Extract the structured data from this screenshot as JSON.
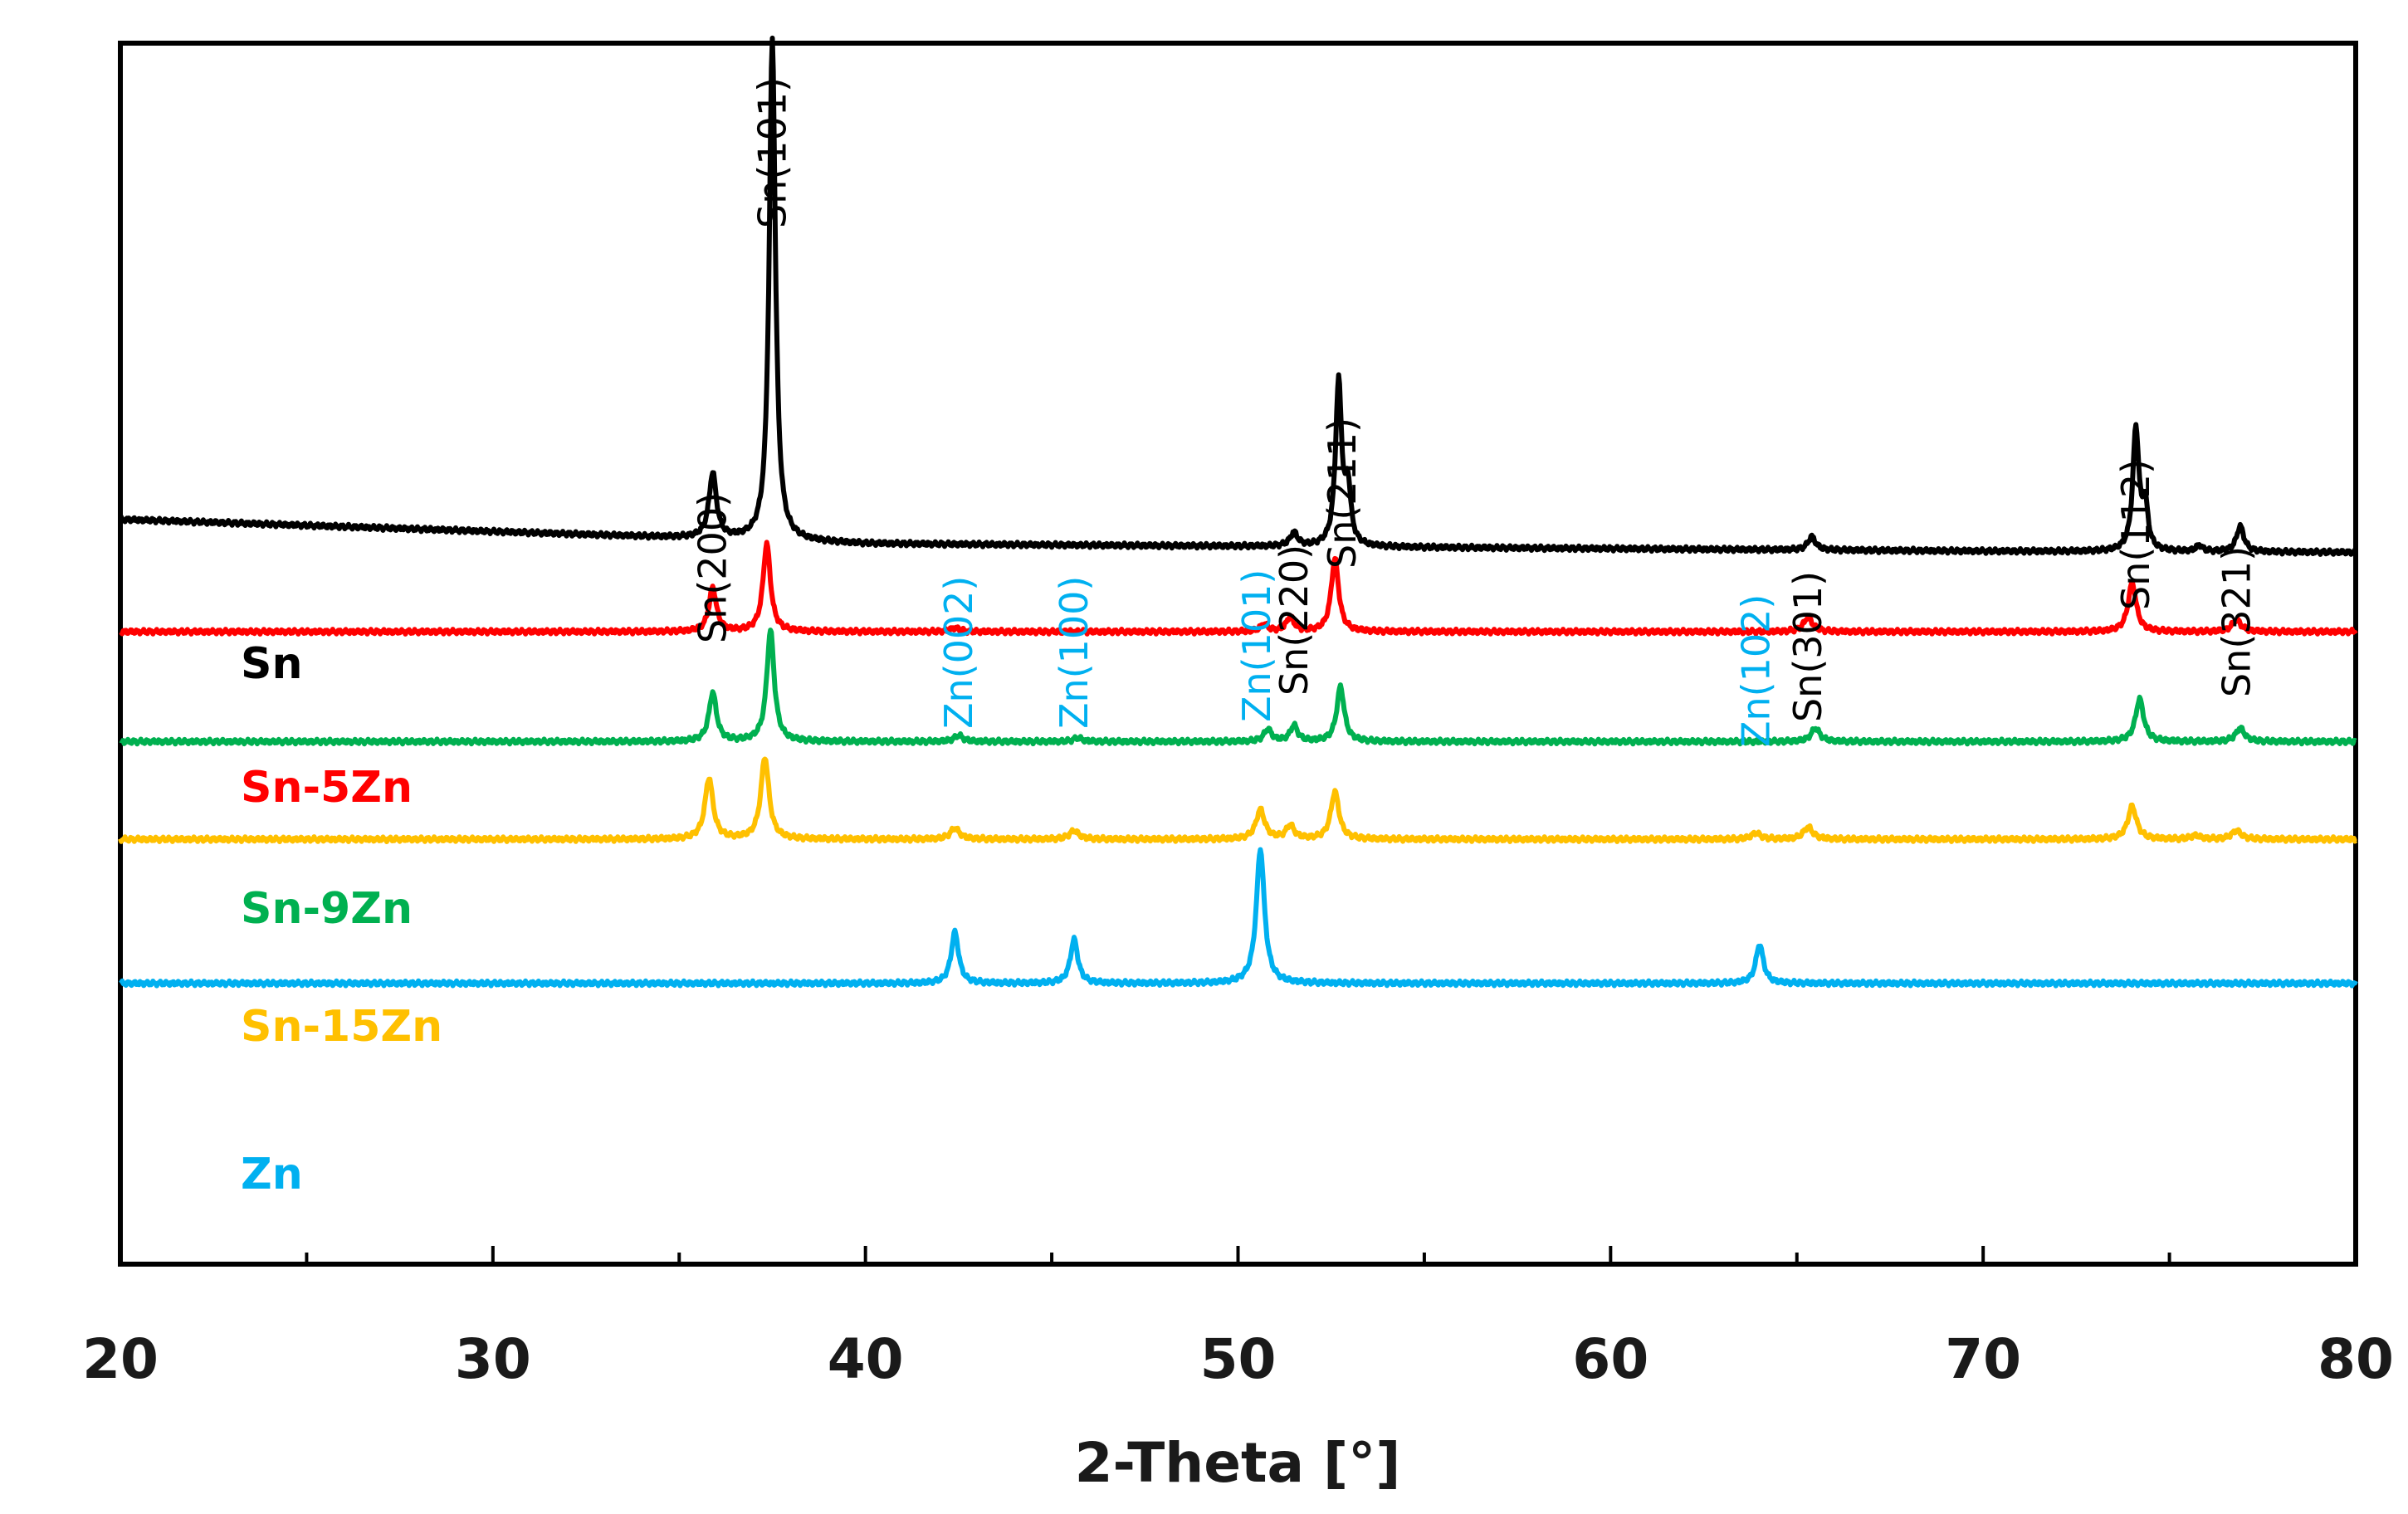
{
  "chart_data": {
    "type": "line",
    "title": "",
    "xlabel": "2-Theta [°]",
    "ylabel": "",
    "xlim": [
      20,
      80
    ],
    "xticks": [
      20,
      30,
      40,
      50,
      60,
      70,
      80
    ],
    "xtick_labels": [
      "20",
      "30",
      "40",
      "50",
      "60",
      "70",
      "80"
    ],
    "ylim": [
      0,
      100
    ],
    "grid": false,
    "series": [
      {
        "name": "Sn",
        "color": "#000000",
        "baseline": [
          [
            20,
            61
          ],
          [
            30,
            60
          ],
          [
            40,
            59
          ],
          [
            50,
            58.8
          ],
          [
            60,
            58.6
          ],
          [
            70,
            58.4
          ],
          [
            80,
            58.3
          ]
        ],
        "peaks": [
          [
            35.9,
            5.3,
            0.12
          ],
          [
            37.5,
            41,
            0.1
          ],
          [
            51.5,
            1.1,
            0.12
          ],
          [
            52.7,
            13.4,
            0.1
          ],
          [
            52.95,
            4.5,
            0.09
          ],
          [
            65.4,
            1.1,
            0.12
          ],
          [
            74.1,
            10,
            0.1
          ],
          [
            74.35,
            3.5,
            0.09
          ],
          [
            75.8,
            0.5,
            0.1
          ],
          [
            76.9,
            2.1,
            0.12
          ]
        ]
      },
      {
        "name": "Sn-5Zn",
        "color": "#ff0000",
        "baseline": [
          [
            20,
            51.8
          ],
          [
            80,
            51.8
          ]
        ],
        "peaks": [
          [
            35.9,
            3.6,
            0.12
          ],
          [
            37.35,
            7.2,
            0.12
          ],
          [
            42.4,
            0.3,
            0.15
          ],
          [
            50.7,
            0.6,
            0.12
          ],
          [
            51.4,
            1.2,
            0.12
          ],
          [
            52.6,
            6,
            0.12
          ],
          [
            65.3,
            1.2,
            0.14
          ],
          [
            74.0,
            4,
            0.13
          ],
          [
            76.8,
            1,
            0.14
          ]
        ]
      },
      {
        "name": "Sn-9Zn",
        "color": "#00b050",
        "baseline": [
          [
            20,
            42.8
          ],
          [
            80,
            42.8
          ]
        ],
        "peaks": [
          [
            35.9,
            4,
            0.12
          ],
          [
            37.45,
            9.1,
            0.12
          ],
          [
            42.5,
            0.5,
            0.14
          ],
          [
            45.7,
            0.3,
            0.14
          ],
          [
            50.8,
            1,
            0.12
          ],
          [
            51.5,
            1.3,
            0.12
          ],
          [
            52.75,
            4.5,
            0.12
          ],
          [
            65.5,
            1.1,
            0.14
          ],
          [
            74.2,
            3.5,
            0.13
          ],
          [
            76.9,
            1.1,
            0.14
          ]
        ]
      },
      {
        "name": "Sn-15Zn",
        "color": "#ffc000",
        "baseline": [
          [
            20,
            34.8
          ],
          [
            80,
            34.8
          ]
        ],
        "peaks": [
          [
            35.8,
            5,
            0.13
          ],
          [
            37.3,
            6.7,
            0.13
          ],
          [
            42.4,
            0.9,
            0.15
          ],
          [
            45.6,
            0.7,
            0.15
          ],
          [
            50.6,
            2.4,
            0.14
          ],
          [
            51.4,
            1.1,
            0.13
          ],
          [
            52.6,
            3.9,
            0.13
          ],
          [
            63.9,
            0.5,
            0.15
          ],
          [
            65.3,
            1,
            0.15
          ],
          [
            74.0,
            2.7,
            0.14
          ],
          [
            75.7,
            0.3,
            0.15
          ],
          [
            76.8,
            0.7,
            0.15
          ]
        ]
      },
      {
        "name": "Zn",
        "color": "#00b0f0",
        "baseline": [
          [
            20,
            23
          ],
          [
            80,
            23
          ]
        ],
        "peaks": [
          [
            42.4,
            4.2,
            0.12
          ],
          [
            45.6,
            3.6,
            0.12
          ],
          [
            50.6,
            11,
            0.13
          ],
          [
            64.0,
            3.2,
            0.12
          ]
        ]
      }
    ],
    "annotations": [
      {
        "text": "Sn(200)",
        "x": 35.9,
        "color": "#000000"
      },
      {
        "text": "Sn(101)",
        "x": 37.5,
        "color": "#000000"
      },
      {
        "text": "Zn(002)",
        "x": 42.5,
        "color": "#00b0f0"
      },
      {
        "text": "Zn(100)",
        "x": 45.6,
        "color": "#00b0f0"
      },
      {
        "text": "Zn(101)",
        "x": 50.5,
        "color": "#00b0f0"
      },
      {
        "text": "Sn(220)",
        "x": 51.5,
        "color": "#000000"
      },
      {
        "text": "Sn(211)",
        "x": 52.8,
        "color": "#000000"
      },
      {
        "text": "Zn(102)",
        "x": 63.9,
        "color": "#00b0f0"
      },
      {
        "text": "Sn(301)",
        "x": 65.3,
        "color": "#000000"
      },
      {
        "text": "Sn(112)",
        "x": 74.1,
        "color": "#000000"
      },
      {
        "text": "Sn(321)",
        "x": 76.8,
        "color": "#000000"
      }
    ]
  }
}
